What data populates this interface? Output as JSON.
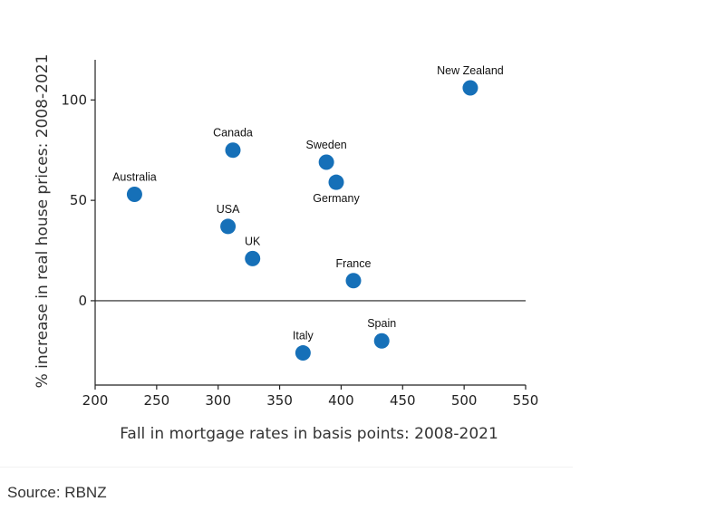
{
  "chart_data": {
    "type": "scatter",
    "title": "",
    "xlabel": "Fall in mortgage rates in basis points: 2008-2021",
    "ylabel": "% increase in real house prices: 2008-2021",
    "xlim": [
      200,
      550
    ],
    "ylim": [
      -42,
      120
    ],
    "xticks": [
      200,
      250,
      300,
      350,
      400,
      450,
      500,
      550
    ],
    "yticks": [
      0,
      50,
      100
    ],
    "grid": false,
    "marker_color": "#1670b8",
    "points": [
      {
        "label": "Australia",
        "x": 232,
        "y": 53,
        "label_pos": "above"
      },
      {
        "label": "Canada",
        "x": 312,
        "y": 75,
        "label_pos": "above"
      },
      {
        "label": "USA",
        "x": 308,
        "y": 37,
        "label_pos": "above"
      },
      {
        "label": "UK",
        "x": 328,
        "y": 21,
        "label_pos": "above"
      },
      {
        "label": "Sweden",
        "x": 388,
        "y": 69,
        "label_pos": "above"
      },
      {
        "label": "Germany",
        "x": 396,
        "y": 59,
        "label_pos": "below"
      },
      {
        "label": "France",
        "x": 410,
        "y": 10,
        "label_pos": "above"
      },
      {
        "label": "New Zealand",
        "x": 505,
        "y": 106,
        "label_pos": "above"
      },
      {
        "label": "Italy",
        "x": 369,
        "y": -26,
        "label_pos": "above"
      },
      {
        "label": "Spain",
        "x": 433,
        "y": -20,
        "label_pos": "above"
      }
    ]
  },
  "source": {
    "text": "Source: RBNZ"
  }
}
